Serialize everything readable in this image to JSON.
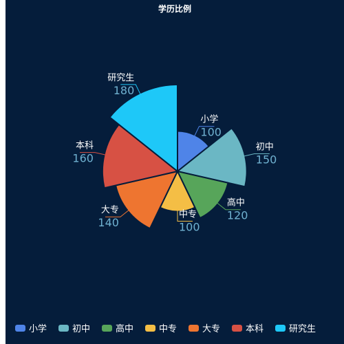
{
  "chart_data": {
    "type": "pie",
    "subtype": "rose",
    "title": "学历比例",
    "legend_position": "bottom",
    "slices": [
      {
        "name": "小学",
        "value": 100,
        "color": "#4f84e8"
      },
      {
        "name": "初中",
        "value": 150,
        "color": "#6bb7c4"
      },
      {
        "name": "高中",
        "value": 120,
        "color": "#57a55a"
      },
      {
        "name": "中专",
        "value": 100,
        "color": "#f4be45"
      },
      {
        "name": "大专",
        "value": 140,
        "color": "#ee7530"
      },
      {
        "name": "本科",
        "value": 160,
        "color": "#d75144"
      },
      {
        "name": "研究生",
        "value": 180,
        "color": "#1ec8f8"
      }
    ]
  }
}
